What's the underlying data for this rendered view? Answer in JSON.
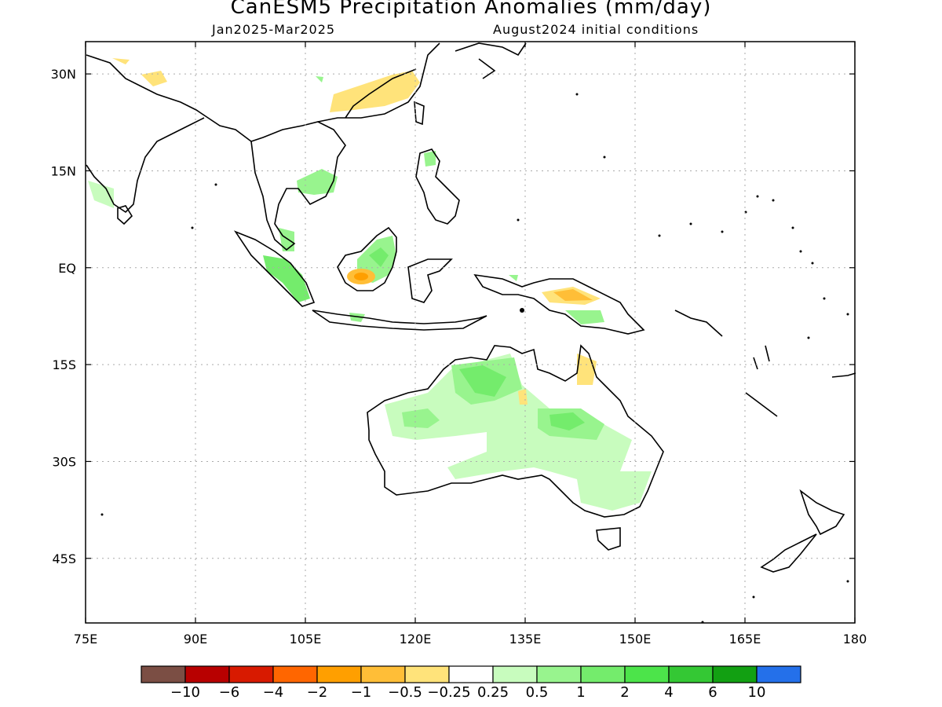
{
  "title": "CanESM5 Precipitation Anomalies (mm/day)",
  "subtitle_left": "Jan2025-Mar2025",
  "subtitle_right": "August2024 initial conditions",
  "lon_ticks": [
    {
      "value": 75,
      "label": "75E"
    },
    {
      "value": 90,
      "label": "90E"
    },
    {
      "value": 105,
      "label": "105E"
    },
    {
      "value": 120,
      "label": "120E"
    },
    {
      "value": 135,
      "label": "135E"
    },
    {
      "value": 150,
      "label": "150E"
    },
    {
      "value": 165,
      "label": "165E"
    },
    {
      "value": 180,
      "label": "180"
    }
  ],
  "lat_ticks": [
    {
      "value": 30,
      "label": "30N"
    },
    {
      "value": 15,
      "label": "15N"
    },
    {
      "value": 0,
      "label": "EQ"
    },
    {
      "value": -15,
      "label": "15S"
    },
    {
      "value": -30,
      "label": "30S"
    },
    {
      "value": -45,
      "label": "45S"
    }
  ],
  "lon_range": [
    75,
    180
  ],
  "lat_range": [
    -55,
    35
  ],
  "colorbar": {
    "colors": [
      "#7b4e44",
      "#b80000",
      "#d81a00",
      "#ff6600",
      "#ff9f00",
      "#ffbe37",
      "#ffe37a",
      "#ffffff",
      "#c8fcbe",
      "#98f48e",
      "#74ec6c",
      "#4ce44a",
      "#34c834",
      "#12a012",
      "#2470ea"
    ],
    "labels": [
      "−10",
      "−6",
      "−4",
      "−2",
      "−1",
      "−0.5",
      "−0.25",
      "0.25",
      "0.5",
      "1",
      "2",
      "4",
      "6",
      "10"
    ]
  }
}
